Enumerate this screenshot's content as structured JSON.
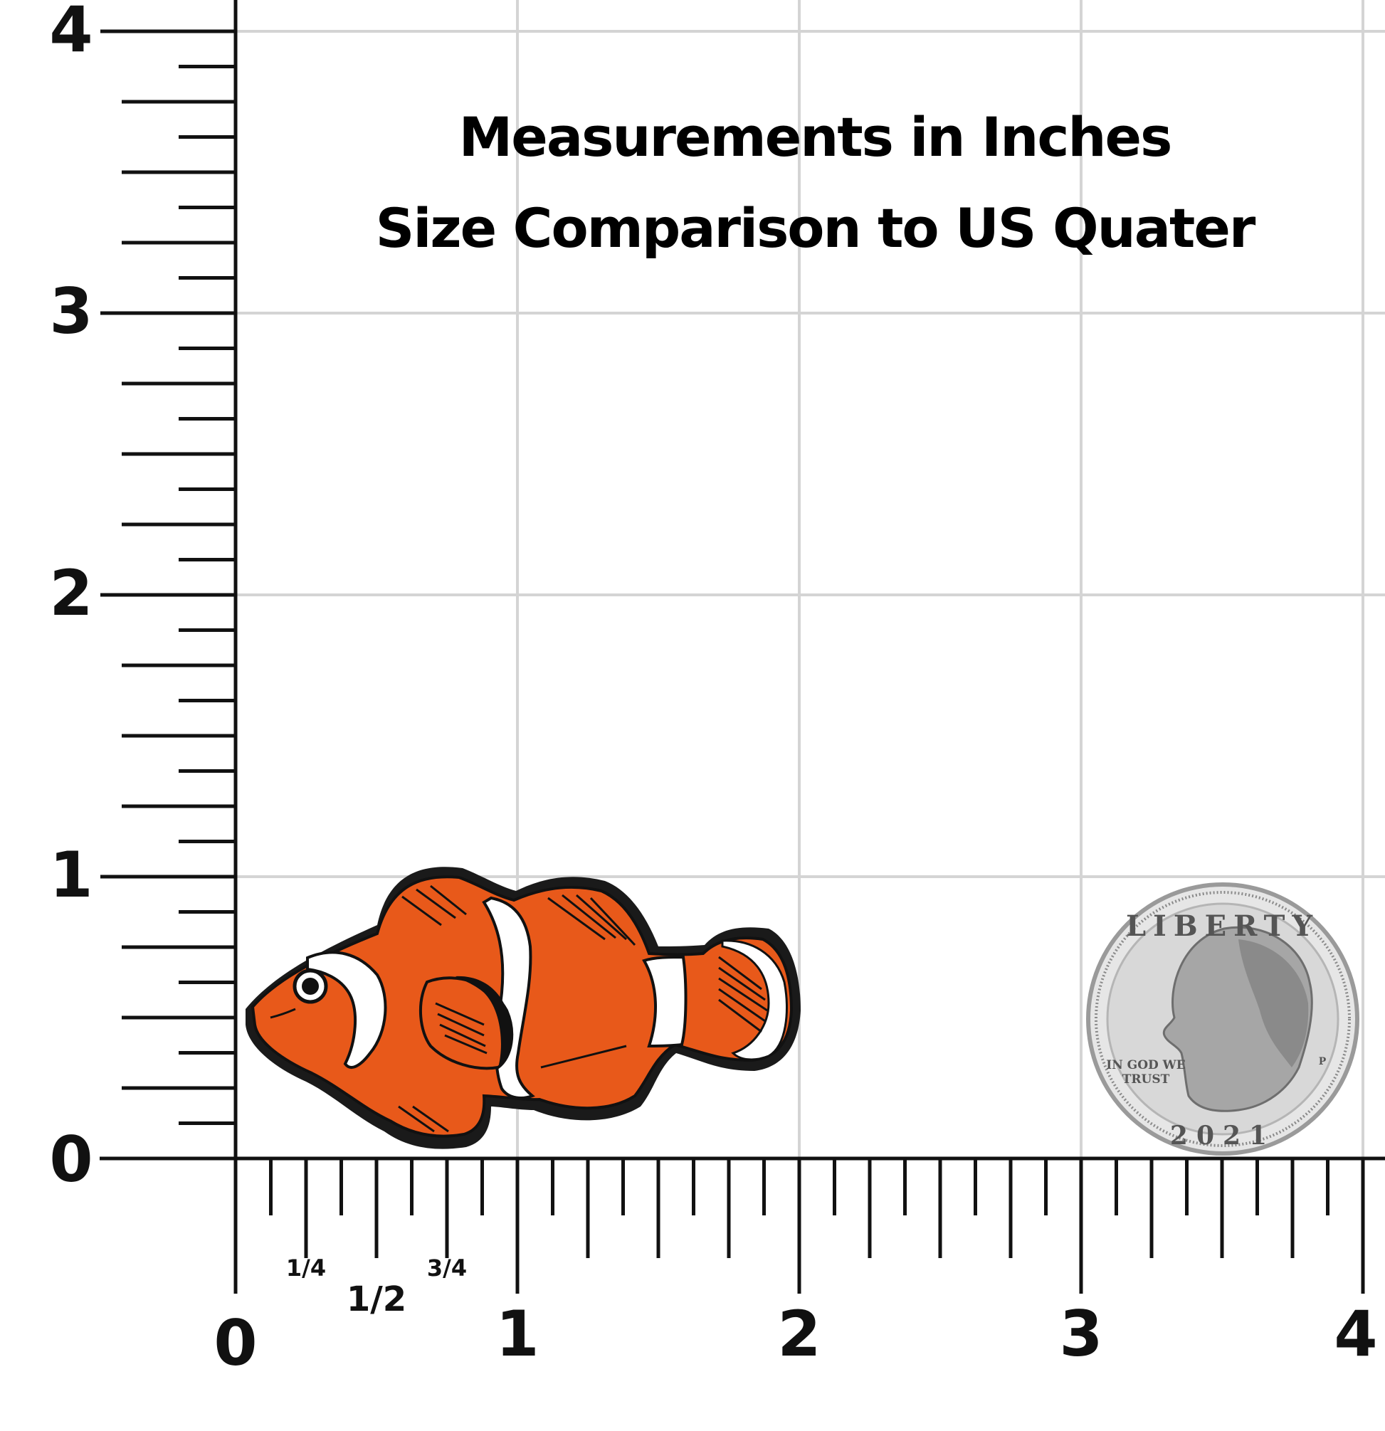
{
  "title": {
    "line1": "Measurements in Inches",
    "line2": "Size Comparison to US Quater"
  },
  "ruler": {
    "unit": "in",
    "x_major_labels": [
      "0",
      "1",
      "2",
      "3",
      "4"
    ],
    "y_major_labels": [
      "0",
      "1",
      "2",
      "3",
      "4"
    ],
    "fraction_labels": [
      "1/4",
      "1/2",
      "3/4"
    ],
    "divisions_per_inch": 8
  },
  "objects": {
    "clownfish_pin": {
      "description_icon": "clownfish-pin",
      "colors": {
        "orange": "#e8591a",
        "white": "#ffffff",
        "outline": "#111111"
      }
    },
    "quarter": {
      "inscription_top": "LIBERTY",
      "motto_line1": "IN GOD WE",
      "motto_line2": "TRUST",
      "year": "2021",
      "mint_mark": "P"
    }
  },
  "colors": {
    "grid": "#d4d4d4",
    "ruler": "#111111",
    "background": "#ffffff"
  }
}
